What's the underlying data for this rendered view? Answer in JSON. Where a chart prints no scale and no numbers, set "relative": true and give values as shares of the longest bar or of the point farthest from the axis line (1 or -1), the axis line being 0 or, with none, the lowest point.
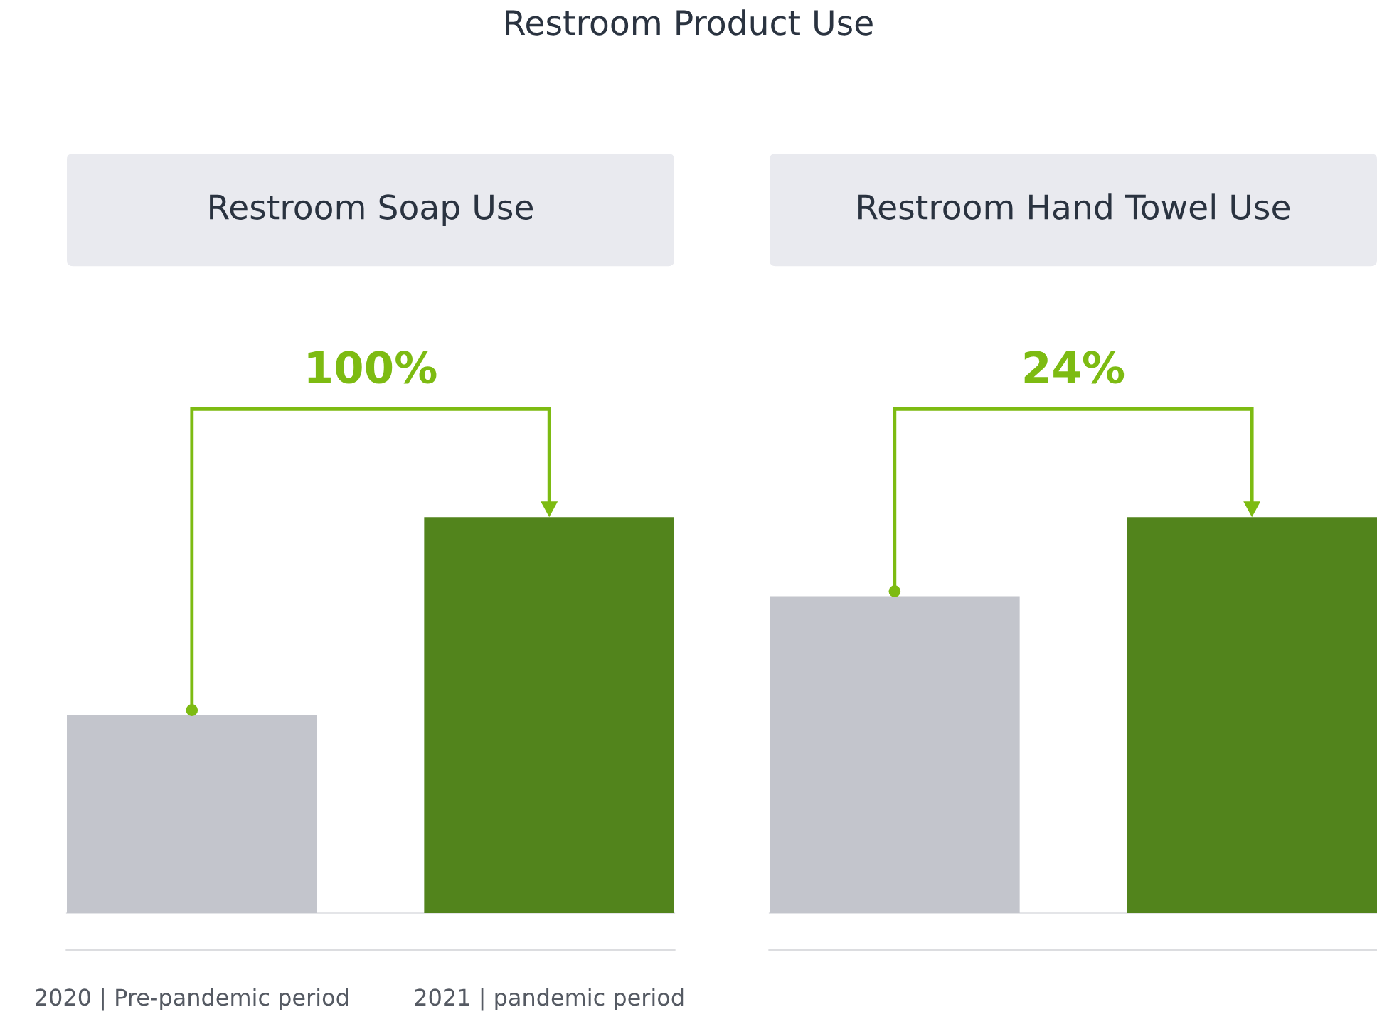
{
  "chart_data": [
    {
      "type": "other",
      "title": "Restroom Product Use"
    },
    {
      "type": "bar",
      "title": "Restroom Soap Use",
      "categories": [
        "2020 | Pre-pandemic period",
        "2021 | pandemic period"
      ],
      "values": [
        0.5,
        1.0
      ],
      "colors": [
        "#c3c5cc",
        "#52841c"
      ],
      "relative": true,
      "annotations": [
        "100%"
      ]
    },
    {
      "type": "bar",
      "title": "Restroom Hand Towel Use",
      "categories": [
        null,
        null
      ],
      "values": [
        0.8,
        1.0
      ],
      "colors": [
        "#c3c5cc",
        "#52841c"
      ],
      "relative": true,
      "annotations": [
        "24%"
      ]
    }
  ]
}
